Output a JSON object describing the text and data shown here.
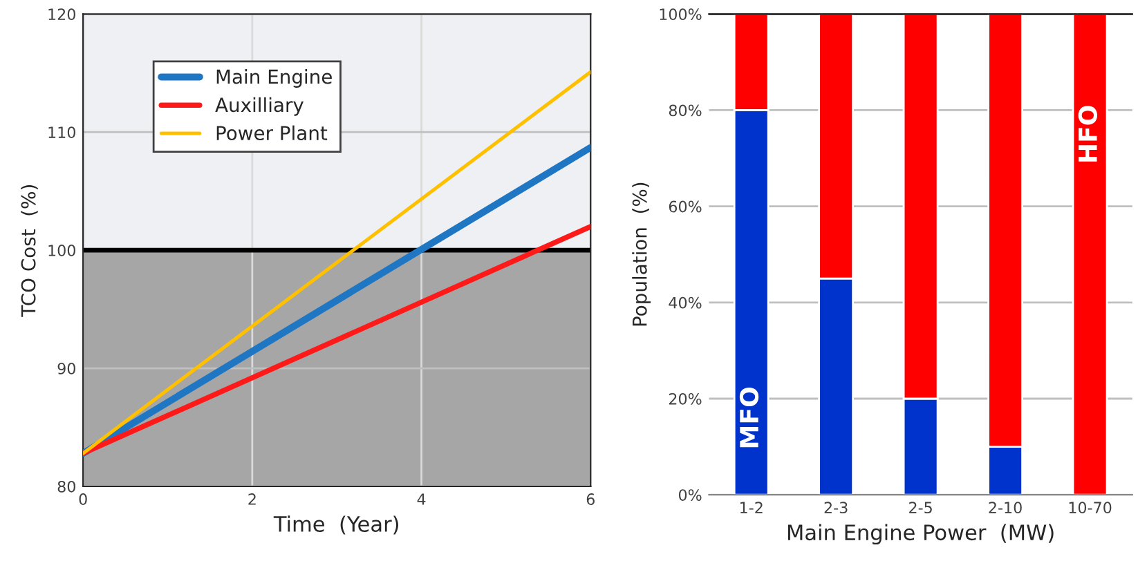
{
  "chart_data": [
    {
      "type": "line",
      "xlabel": "Time  (Year)",
      "ylabel": "TCO Cost  (%)",
      "x": [
        0,
        6
      ],
      "series": [
        {
          "name": "Main Engine",
          "color": "#1f77c4",
          "values": [
            82.8,
            108.7
          ]
        },
        {
          "name": "Auxilliary",
          "color": "#ff1a1a",
          "values": [
            82.8,
            102
          ]
        },
        {
          "name": "Power Plant",
          "color": "#ffc000",
          "values": [
            82.8,
            115.1
          ]
        }
      ],
      "xlim": [
        0,
        6
      ],
      "xticks": [
        0,
        2,
        4,
        6
      ],
      "ylim": [
        80,
        120
      ],
      "yticks": [
        80,
        90,
        100,
        110,
        120
      ],
      "ref_lines": [
        {
          "axis": "y",
          "value": 100,
          "color": "#000000"
        }
      ],
      "bands": [
        {
          "axis": "y",
          "from": 80,
          "to": 100,
          "color": "#a6a6a6"
        },
        {
          "axis": "y",
          "from": 100,
          "to": 120,
          "color": "#eef0f4"
        }
      ],
      "grid": true,
      "legend": "top left",
      "line_style": "solid",
      "marker": "none"
    },
    {
      "type": "bar",
      "stacked": true,
      "xlabel": "Main Engine Power  (MW)",
      "ylabel": "Population  (%)",
      "categories": [
        "1-2",
        "2-3",
        "2-5",
        "2-10",
        "10-70"
      ],
      "series": [
        {
          "name": "MFO",
          "color": "#0033cc",
          "values": [
            80,
            45,
            20,
            10,
            0
          ]
        },
        {
          "name": "HFO",
          "color": "#ff0000",
          "values": [
            20,
            55,
            80,
            90,
            100
          ]
        }
      ],
      "ylim": [
        0,
        100
      ],
      "yticks": [
        {
          "value": 0,
          "label": "0%"
        },
        {
          "value": 20,
          "label": "20%"
        },
        {
          "value": 40,
          "label": "40%"
        },
        {
          "value": 60,
          "label": "60%"
        },
        {
          "value": 80,
          "label": "80%"
        },
        {
          "value": 100,
          "label": "100%"
        }
      ],
      "grid": "y"
    }
  ]
}
